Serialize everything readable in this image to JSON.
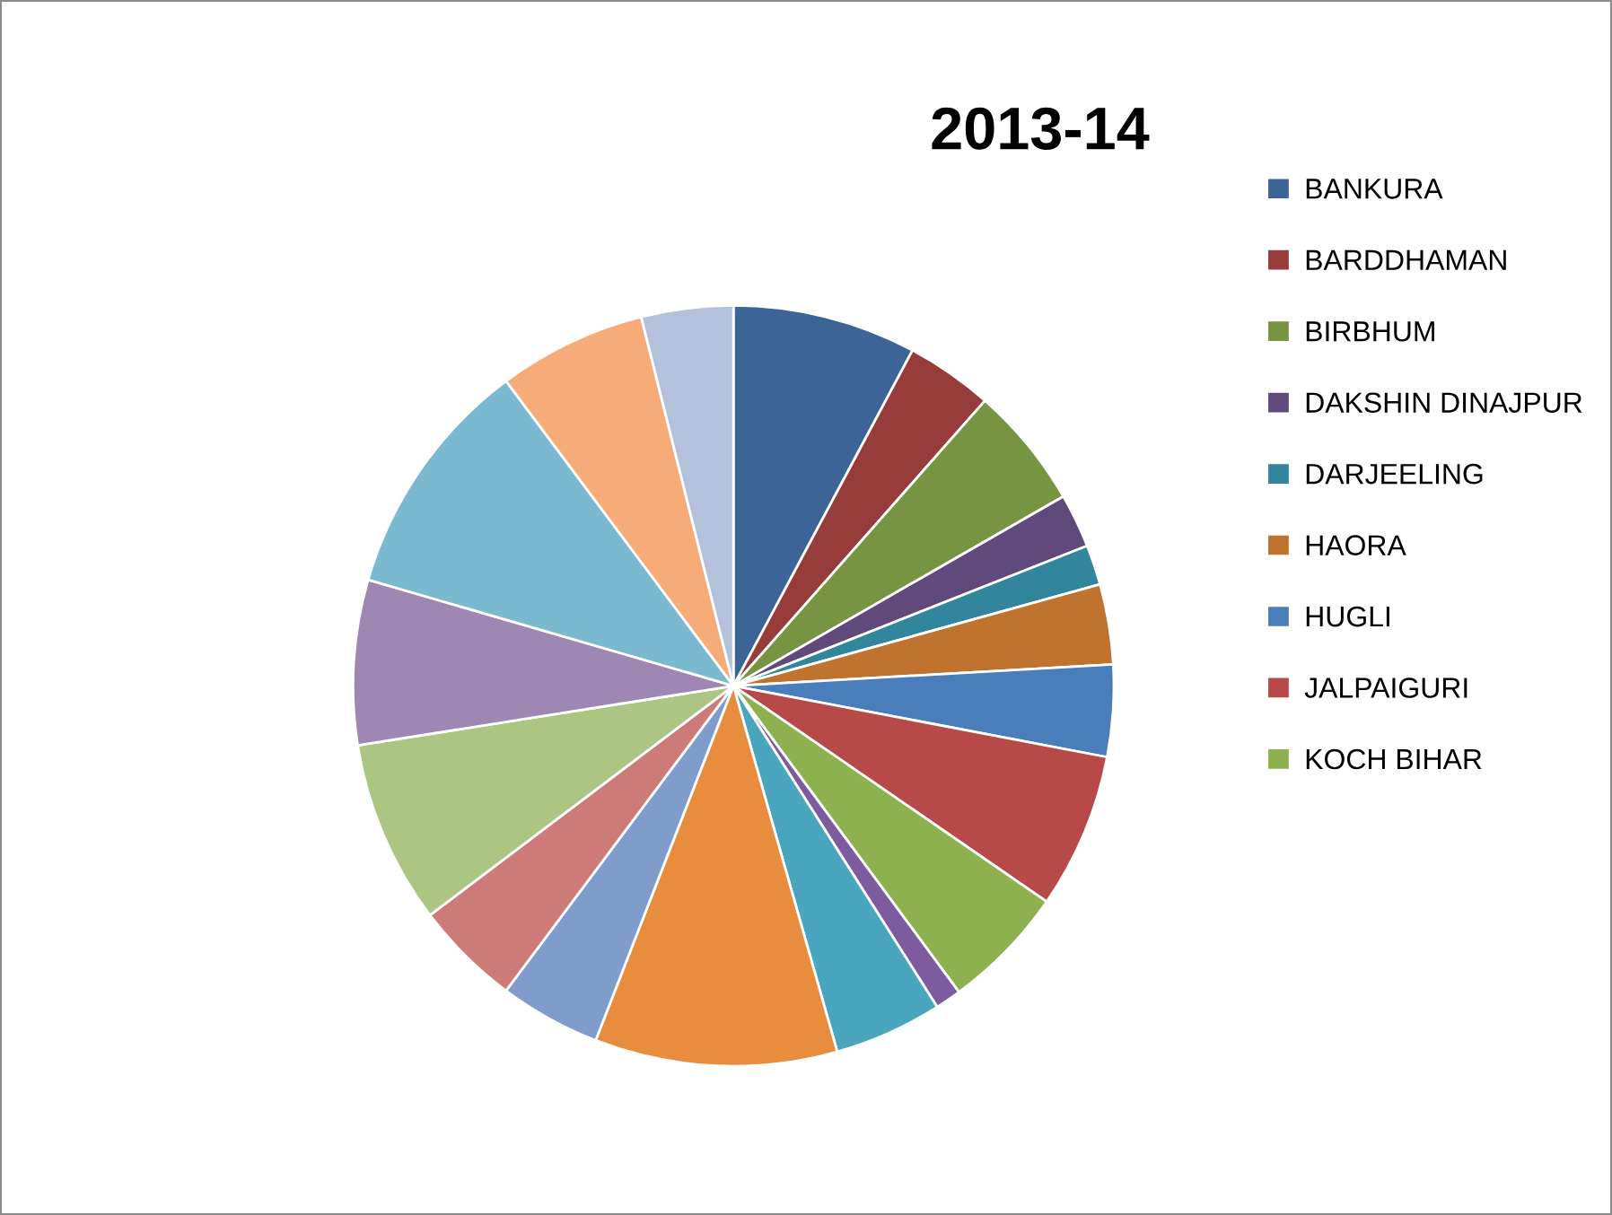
{
  "chart_data": {
    "type": "pie",
    "title": "2013-14",
    "categories": [
      "BANKURA",
      "BARDDHAMAN",
      "BIRBHUM",
      "DAKSHIN DINAJPUR",
      "DARJEELING",
      "HAORA",
      "HUGLI",
      "JALPAIGURI",
      "KOCH BIHAR",
      null,
      null,
      null,
      null,
      null,
      null,
      null,
      null,
      null,
      null
    ],
    "values": [
      7.8,
      3.7,
      5.2,
      2.3,
      1.7,
      3.4,
      3.9,
      6.6,
      5.3,
      1.1,
      4.6,
      10.3,
      4.3,
      4.5,
      7.8,
      7.0,
      10.3,
      6.3,
      3.9
    ],
    "colors": [
      "#3c6496",
      "#963c3a",
      "#779443",
      "#604a7b",
      "#31859c",
      "#c0722f",
      "#4a7ebb",
      "#b74a48",
      "#8eb150",
      "#7c5c9e",
      "#4aa5bf",
      "#e88c3d",
      "#7f9cca",
      "#cc7b79",
      "#adc582",
      "#9e88b3",
      "#7ab9d0",
      "#f7ab78",
      "#b3c1dd"
    ],
    "legend": "right"
  }
}
